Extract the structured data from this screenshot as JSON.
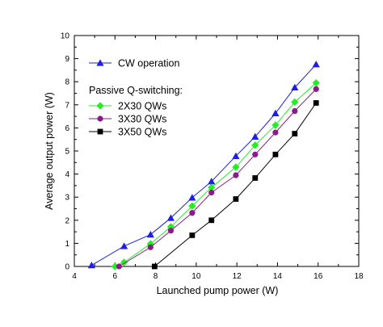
{
  "chart_data": {
    "type": "line",
    "title": "",
    "xlabel": "Launched pump power (W)",
    "ylabel": "Average output power (W)",
    "xlim": [
      4,
      18
    ],
    "ylim": [
      0,
      10
    ],
    "x_ticks": [
      4,
      6,
      8,
      10,
      12,
      14,
      16,
      18
    ],
    "y_ticks": [
      0,
      1,
      2,
      3,
      4,
      5,
      6,
      7,
      8,
      9,
      10
    ],
    "grid": false,
    "legend_position": "top-left",
    "legend_group_title": "Passive Q-switching:",
    "series": [
      {
        "name": "CW operation",
        "color": "#1e1ee6",
        "marker": "triangle",
        "x": [
          4.85,
          6.45,
          7.75,
          8.75,
          9.8,
          10.75,
          11.95,
          12.9,
          13.9,
          14.85,
          15.9
        ],
        "y": [
          0.05,
          0.88,
          1.38,
          2.1,
          2.98,
          3.68,
          4.78,
          5.62,
          6.63,
          7.75,
          8.75
        ]
      },
      {
        "name": "2X30 QWs",
        "color": "#22ee22",
        "marker": "diamond",
        "x": [
          6.0,
          6.45,
          7.75,
          8.75,
          9.8,
          10.75,
          11.95,
          12.9,
          13.9,
          14.85,
          15.9
        ],
        "y": [
          0.0,
          0.18,
          0.98,
          1.72,
          2.62,
          3.42,
          4.3,
          5.25,
          6.12,
          7.12,
          7.95
        ]
      },
      {
        "name": "3X30 QWs",
        "color": "#8b1a8b",
        "marker": "circle",
        "x": [
          6.2,
          7.75,
          8.75,
          9.8,
          10.75,
          11.95,
          12.9,
          13.9,
          14.85,
          15.9
        ],
        "y": [
          0.0,
          0.83,
          1.55,
          2.32,
          3.2,
          3.95,
          4.85,
          5.8,
          6.73,
          7.68
        ]
      },
      {
        "name": "3X50 QWs",
        "color": "#000000",
        "marker": "square",
        "x": [
          7.95,
          9.8,
          10.75,
          11.95,
          12.9,
          13.9,
          14.85,
          15.9
        ],
        "y": [
          0.0,
          1.35,
          2.0,
          2.92,
          3.83,
          4.85,
          5.75,
          7.08
        ]
      }
    ]
  }
}
